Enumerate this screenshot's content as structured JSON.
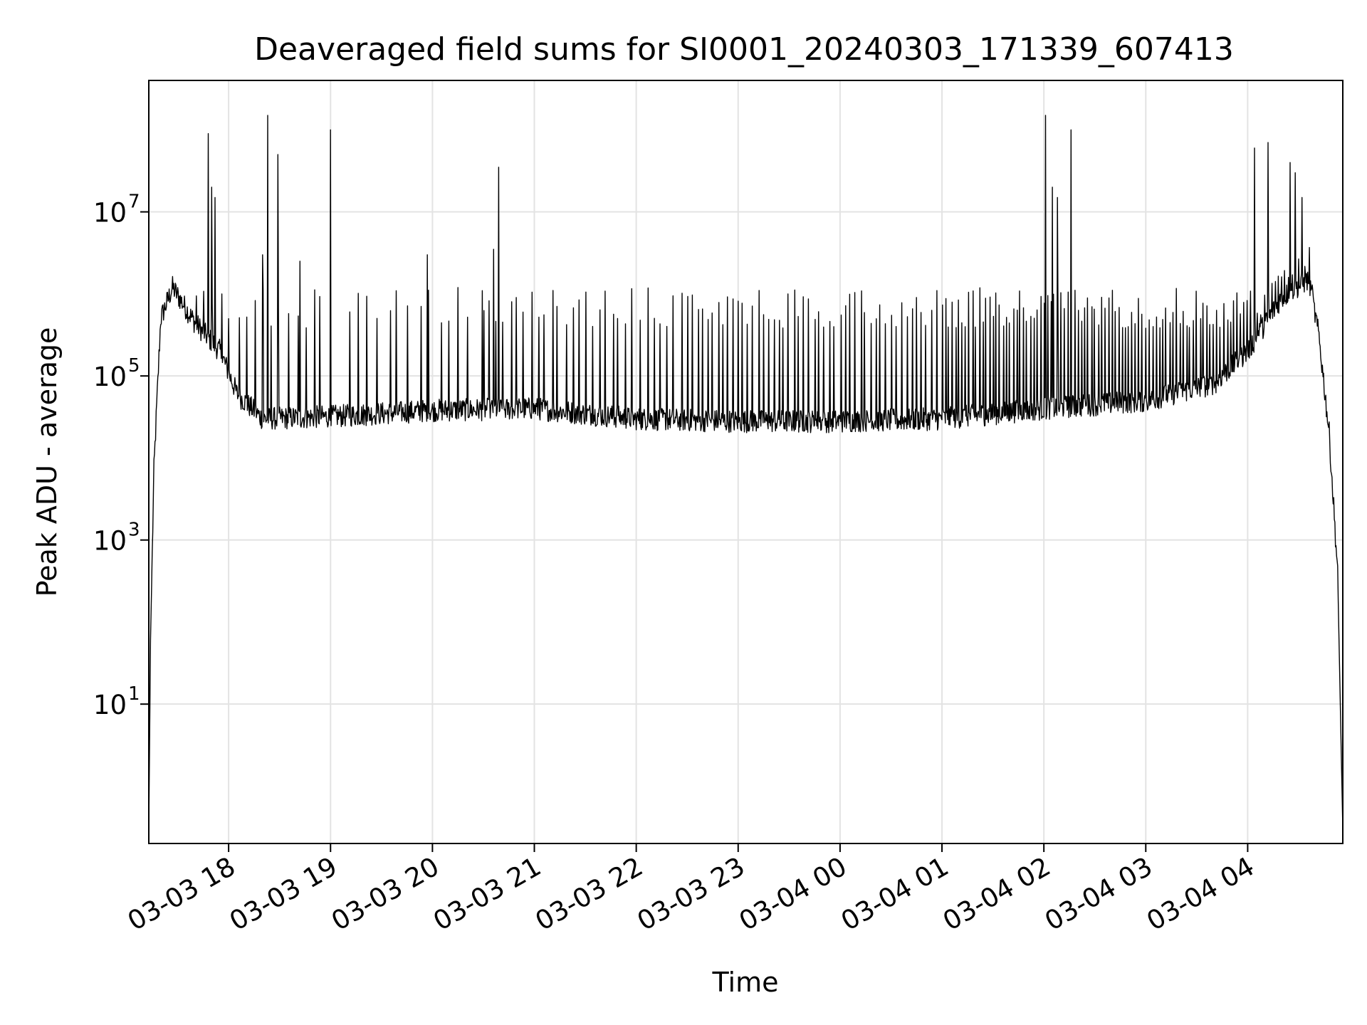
{
  "chart_data": {
    "type": "line",
    "title": "Deaveraged field sums for SI0001_20240303_171339_607413",
    "xlabel": "Time",
    "ylabel": "Peak ADU - average",
    "x_tick_labels": [
      "03-03 18",
      "03-03 19",
      "03-03 20",
      "03-03 21",
      "03-03 22",
      "03-03 23",
      "03-04 00",
      "03-04 01",
      "03-04 02",
      "03-04 03",
      "03-04 04"
    ],
    "y_ticks": [
      {
        "base": "10",
        "exp": "1",
        "value": 10
      },
      {
        "base": "10",
        "exp": "3",
        "value": 1000
      },
      {
        "base": "10",
        "exp": "5",
        "value": 100000
      },
      {
        "base": "10",
        "exp": "7",
        "value": 10000000
      }
    ],
    "x_range": [
      "2024-03-03 17:13",
      "2024-03-04 04:56"
    ],
    "yscale": "log",
    "ylim": [
      0.2,
      400000000
    ],
    "grid": true,
    "line_color": "#000000",
    "series": [
      {
        "baseline_shape": [
          {
            "t": "2024-03-03 17:13",
            "v": 0.3
          },
          {
            "t": "2024-03-03 17:14",
            "v": 60
          },
          {
            "t": "2024-03-03 17:16",
            "v": 7000
          },
          {
            "t": "2024-03-03 17:20",
            "v": 500000
          },
          {
            "t": "2024-03-03 17:27",
            "v": 1200000
          },
          {
            "t": "2024-03-03 17:40",
            "v": 450000
          },
          {
            "t": "2024-03-03 17:55",
            "v": 200000
          },
          {
            "t": "2024-03-03 18:05",
            "v": 60000
          },
          {
            "t": "2024-03-03 18:20",
            "v": 30000
          },
          {
            "t": "2024-03-03 19:00",
            "v": 32000
          },
          {
            "t": "2024-03-03 20:00",
            "v": 38000
          },
          {
            "t": "2024-03-03 21:00",
            "v": 40000
          },
          {
            "t": "2024-03-03 22:00",
            "v": 30000
          },
          {
            "t": "2024-03-03 23:00",
            "v": 28000
          },
          {
            "t": "2024-03-04 00:00",
            "v": 28000
          },
          {
            "t": "2024-03-04 01:00",
            "v": 30000
          },
          {
            "t": "2024-03-04 02:00",
            "v": 40000
          },
          {
            "t": "2024-03-04 03:00",
            "v": 50000
          },
          {
            "t": "2024-03-04 03:40",
            "v": 80000
          },
          {
            "t": "2024-03-04 04:00",
            "v": 200000
          },
          {
            "t": "2024-03-04 04:20",
            "v": 900000
          },
          {
            "t": "2024-03-04 04:36",
            "v": 1500000
          },
          {
            "t": "2024-03-04 04:42",
            "v": 300000
          },
          {
            "t": "2024-03-04 04:48",
            "v": 20000
          },
          {
            "t": "2024-03-04 04:53",
            "v": 400
          },
          {
            "t": "2024-03-04 04:56",
            "v": 0.3
          }
        ],
        "spikes": [
          {
            "t": "2024-03-03 17:48",
            "v": 90000000
          },
          {
            "t": "2024-03-03 17:50",
            "v": 20000000
          },
          {
            "t": "2024-03-03 17:52",
            "v": 15000000
          },
          {
            "t": "2024-03-03 18:20",
            "v": 3000000
          },
          {
            "t": "2024-03-03 18:23",
            "v": 150000000
          },
          {
            "t": "2024-03-03 18:29",
            "v": 50000000
          },
          {
            "t": "2024-03-03 18:42",
            "v": 2500000
          },
          {
            "t": "2024-03-03 19:00",
            "v": 100000000
          },
          {
            "t": "2024-03-03 19:57",
            "v": 3000000
          },
          {
            "t": "2024-03-03 20:36",
            "v": 3500000
          },
          {
            "t": "2024-03-03 20:39",
            "v": 35000000
          },
          {
            "t": "2024-03-04 02:01",
            "v": 150000000
          },
          {
            "t": "2024-03-04 02:05",
            "v": 20000000
          },
          {
            "t": "2024-03-04 02:08",
            "v": 15000000
          },
          {
            "t": "2024-03-04 02:16",
            "v": 100000000
          },
          {
            "t": "2024-03-04 04:04",
            "v": 60000000
          },
          {
            "t": "2024-03-04 04:12",
            "v": 70000000
          },
          {
            "t": "2024-03-04 04:25",
            "v": 40000000
          },
          {
            "t": "2024-03-04 04:28",
            "v": 30000000
          },
          {
            "t": "2024-03-04 04:32",
            "v": 15000000
          }
        ],
        "pulse_level": 1200000,
        "pulse_intervals_minutes": [
          {
            "from": "2024-03-03 17:40",
            "to": "2024-03-03 19:05",
            "every": 5
          },
          {
            "from": "2024-03-03 19:10",
            "to": "2024-03-03 20:30",
            "every": 6
          },
          {
            "from": "2024-03-03 20:30",
            "to": "2024-03-03 22:30",
            "every": 4
          },
          {
            "from": "2024-03-03 22:30",
            "to": "2024-03-04 01:00",
            "every": 3
          },
          {
            "from": "2024-03-04 01:00",
            "to": "2024-03-04 02:00",
            "every": 2
          },
          {
            "from": "2024-03-04 02:00",
            "to": "2024-03-04 04:40",
            "every": 2
          }
        ]
      }
    ]
  }
}
